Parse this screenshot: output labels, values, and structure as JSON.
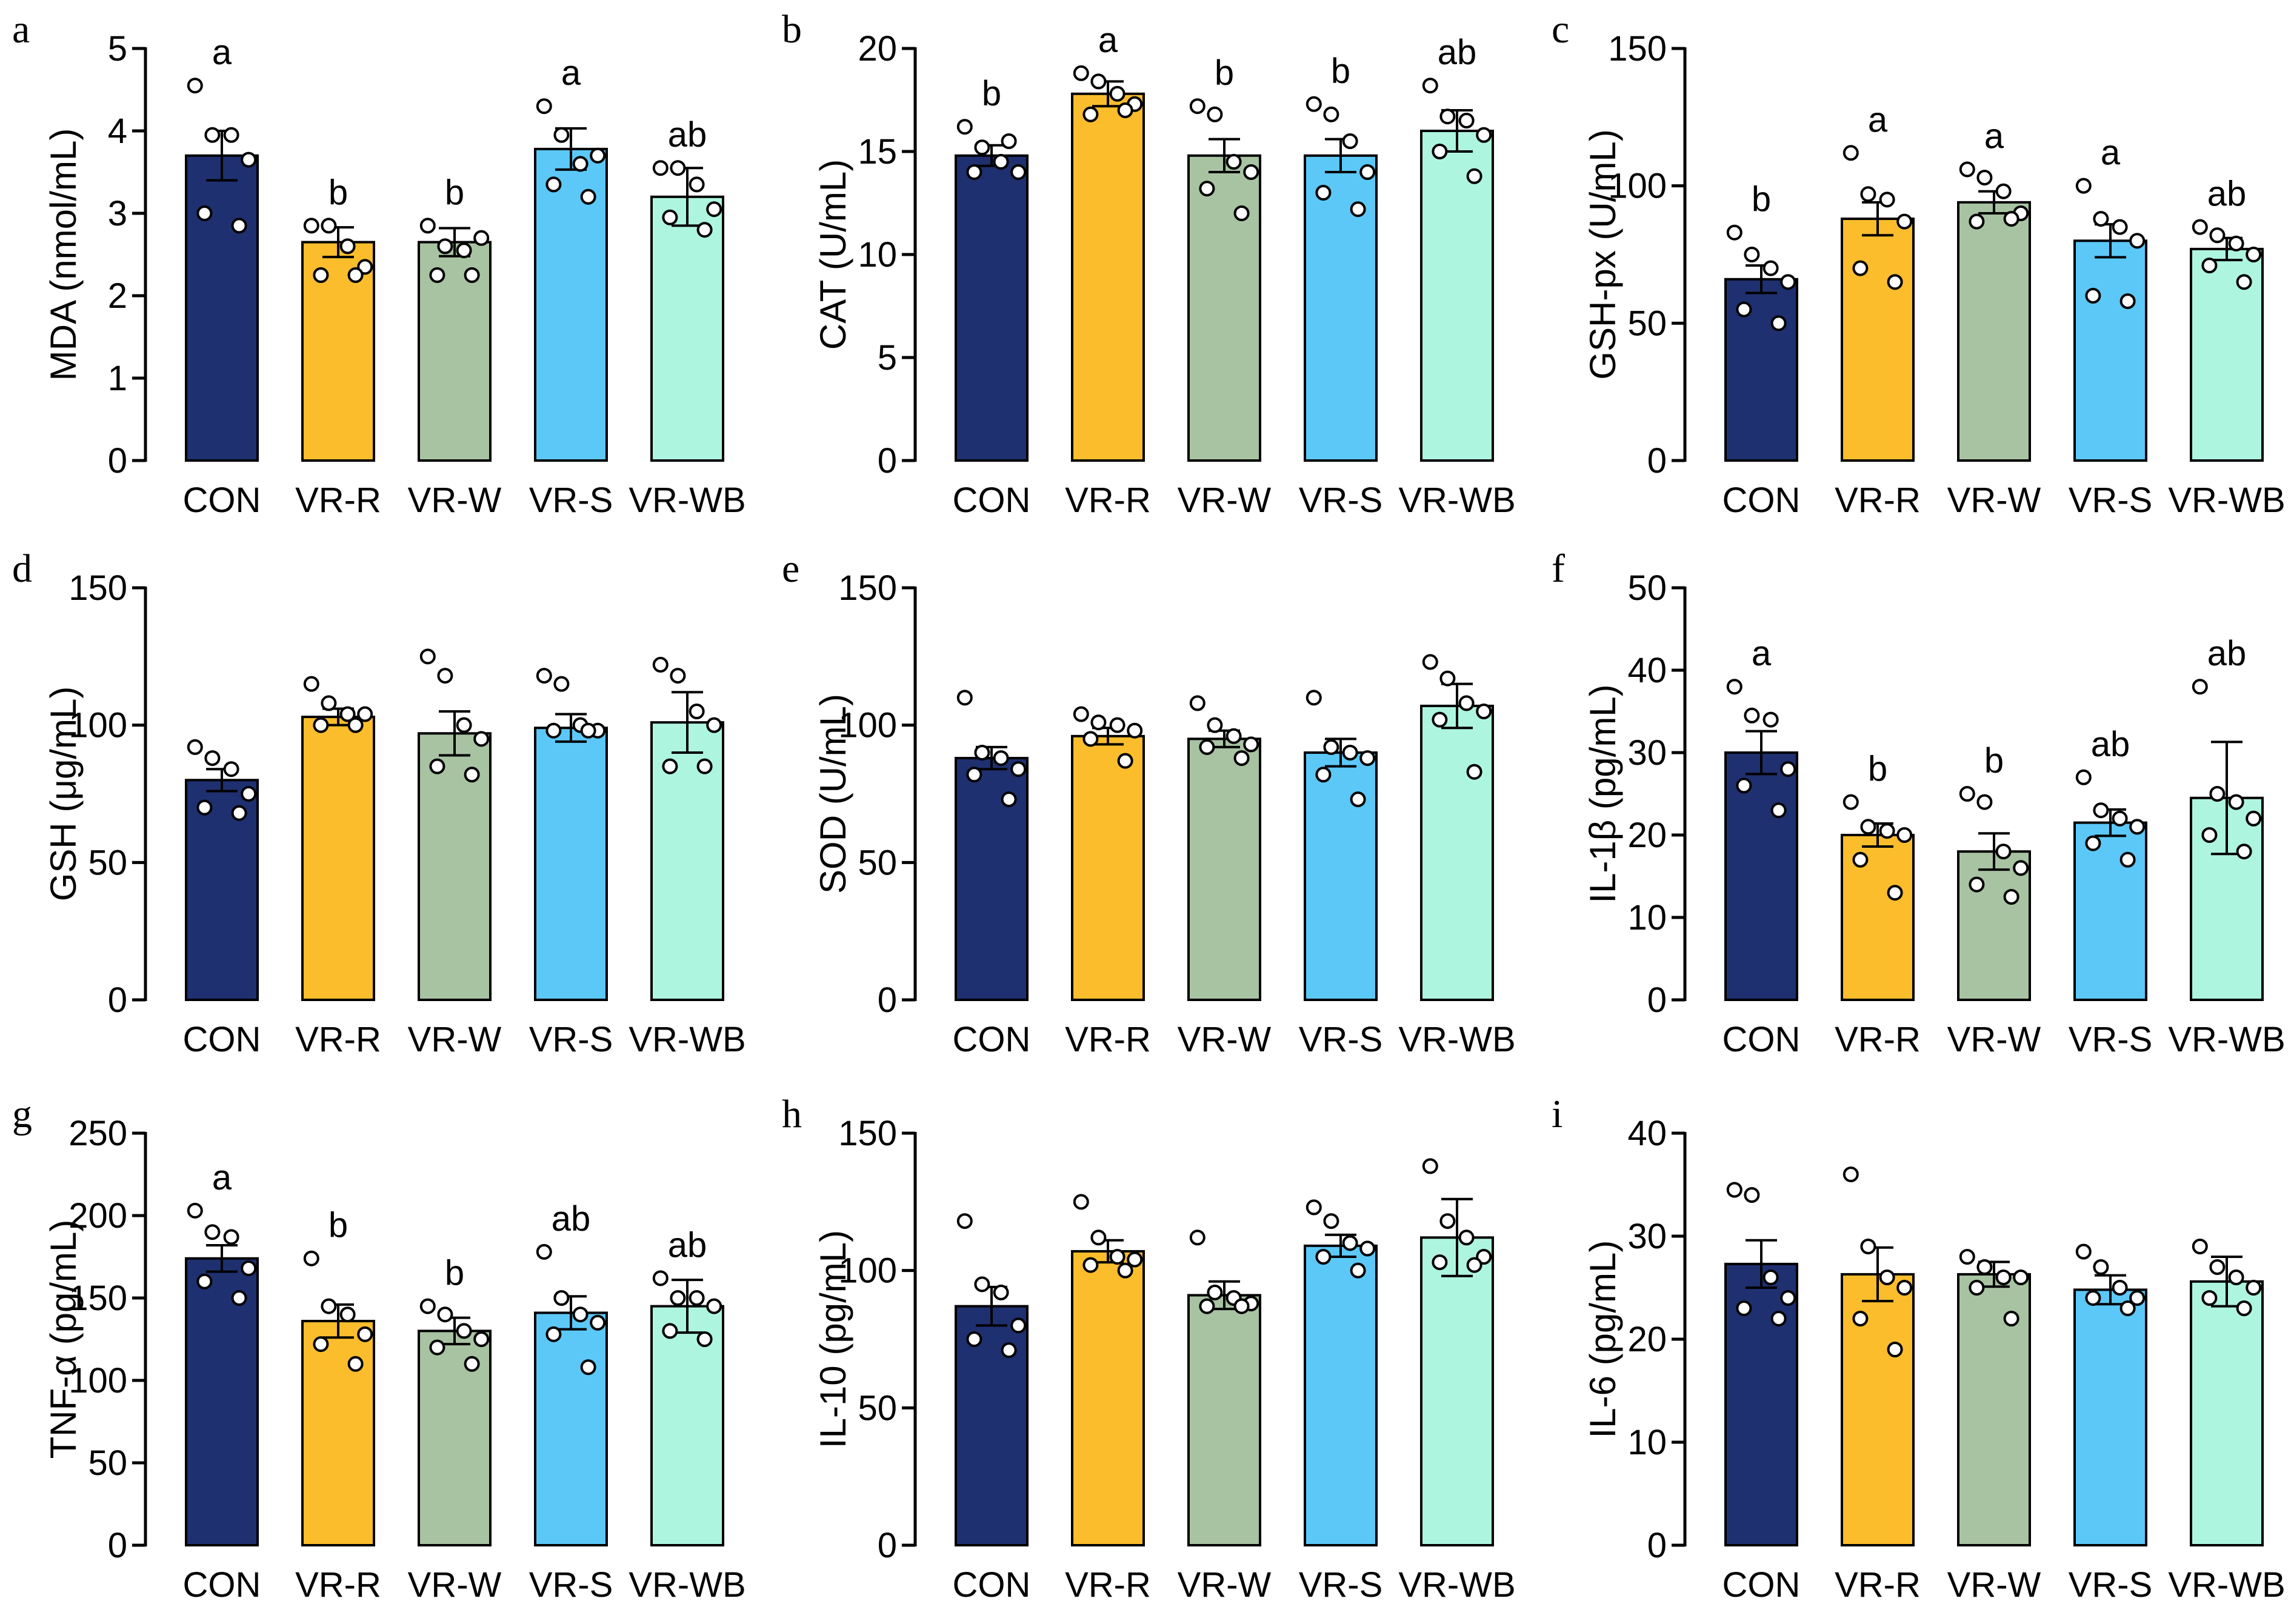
{
  "colors": [
    "#1f3070",
    "#fbbd2c",
    "#a8c3a2",
    "#5cc8f8",
    "#aef5e0"
  ],
  "categories": [
    "CON",
    "VR-R",
    "VR-W",
    "VR-S",
    "VR-WB"
  ],
  "chart_data": [
    {
      "type": "bar",
      "panel": "a",
      "ylabel": "MDA (nmol/mL)",
      "ylim": [
        0,
        5
      ],
      "ticks": [
        0,
        1,
        2,
        3,
        4,
        5
      ],
      "values": [
        3.7,
        2.65,
        2.65,
        3.78,
        3.2
      ],
      "sem": [
        0.3,
        0.18,
        0.17,
        0.25,
        0.35
      ],
      "letters": [
        "a",
        "b",
        "b",
        "a",
        "ab"
      ],
      "points": [
        [
          4.55,
          3.95,
          3.95,
          3.65,
          3.0,
          2.85
        ],
        [
          2.85,
          2.85,
          2.6,
          2.35,
          2.25,
          2.25
        ],
        [
          2.85,
          2.6,
          2.55,
          2.7,
          2.25,
          2.25
        ],
        [
          4.3,
          3.95,
          3.6,
          3.7,
          3.35,
          3.2
        ],
        [
          3.55,
          3.55,
          3.35,
          3.05,
          2.95,
          2.8
        ]
      ]
    },
    {
      "type": "bar",
      "panel": "b",
      "ylabel": "CAT (U/mL)",
      "ylim": [
        0,
        20
      ],
      "ticks": [
        0,
        5,
        10,
        15,
        20
      ],
      "values": [
        14.8,
        17.8,
        14.8,
        14.8,
        16.0
      ],
      "sem": [
        0.5,
        0.6,
        0.8,
        0.8,
        1.0
      ],
      "letters": [
        "b",
        "a",
        "b",
        "b",
        "ab"
      ],
      "points": [
        [
          16.2,
          15.2,
          14.5,
          14.0,
          14.0,
          15.5
        ],
        [
          18.8,
          18.4,
          17.8,
          17.3,
          16.8,
          17.0
        ],
        [
          17.2,
          16.8,
          14.5,
          14.0,
          13.2,
          12.0
        ],
        [
          17.3,
          16.8,
          15.5,
          14.0,
          13.0,
          12.2
        ],
        [
          18.2,
          16.7,
          16.5,
          15.8,
          15.0,
          13.8
        ]
      ]
    },
    {
      "type": "bar",
      "panel": "c",
      "ylabel": "GSH-px (U/mL)",
      "ylim": [
        0,
        150
      ],
      "ticks": [
        0,
        50,
        100,
        150
      ],
      "values": [
        66,
        88,
        94,
        80,
        77
      ],
      "sem": [
        5,
        6,
        4,
        6,
        4
      ],
      "letters": [
        "b",
        "a",
        "a",
        "a",
        "ab"
      ],
      "points": [
        [
          83,
          75,
          70,
          65,
          55,
          50
        ],
        [
          112,
          97,
          95,
          87,
          70,
          65
        ],
        [
          106,
          103,
          98,
          90,
          87,
          88
        ],
        [
          100,
          88,
          85,
          80,
          60,
          58
        ],
        [
          85,
          82,
          79,
          75,
          71,
          65
        ]
      ]
    },
    {
      "type": "bar",
      "panel": "d",
      "ylabel": "GSH (μg/mL)",
      "ylim": [
        0,
        150
      ],
      "ticks": [
        0,
        50,
        100,
        150
      ],
      "values": [
        80,
        103,
        97,
        99,
        101
      ],
      "sem": [
        4,
        3,
        8,
        5,
        11
      ],
      "letters": [
        "",
        "",
        "",
        "",
        ""
      ],
      "points": [
        [
          92,
          88,
          84,
          75,
          70,
          68
        ],
        [
          115,
          108,
          104,
          104,
          100,
          100
        ],
        [
          125,
          118,
          100,
          95,
          85,
          82
        ],
        [
          118,
          115,
          100,
          98,
          98,
          98
        ],
        [
          122,
          118,
          105,
          100,
          85,
          85
        ]
      ]
    },
    {
      "type": "bar",
      "panel": "e",
      "ylabel": "SOD (U/mL)",
      "ylim": [
        0,
        150
      ],
      "ticks": [
        0,
        50,
        100,
        150
      ],
      "values": [
        88,
        96,
        95,
        90,
        107
      ],
      "sem": [
        4,
        3,
        3,
        5,
        8
      ],
      "letters": [
        "",
        "",
        "",
        "",
        ""
      ],
      "points": [
        [
          110,
          90,
          88,
          84,
          82,
          73
        ],
        [
          104,
          101,
          100,
          98,
          95,
          87
        ],
        [
          108,
          100,
          96,
          93,
          92,
          88
        ],
        [
          110,
          92,
          90,
          88,
          82,
          73
        ],
        [
          123,
          117,
          108,
          105,
          102,
          83
        ]
      ]
    },
    {
      "type": "bar",
      "panel": "f",
      "ylabel": "IL-1β (pg/mL)",
      "ylim": [
        0,
        50
      ],
      "ticks": [
        0,
        10,
        20,
        30,
        40,
        50
      ],
      "values": [
        30,
        20,
        18,
        21.5,
        24.5
      ],
      "sem": [
        2.6,
        1.4,
        2.2,
        1.6,
        6.8
      ],
      "letters": [
        "a",
        "b",
        "b",
        "ab",
        "ab"
      ],
      "points": [
        [
          38,
          34.5,
          34,
          28,
          26,
          23
        ],
        [
          24,
          21,
          20.5,
          20,
          17,
          13
        ],
        [
          25,
          24,
          18,
          16,
          14,
          12.5
        ],
        [
          27,
          23,
          22,
          21,
          19,
          17
        ],
        [
          38,
          25,
          24,
          22,
          20,
          18
        ]
      ]
    },
    {
      "type": "bar",
      "panel": "g",
      "ylabel": "TNF-α (pg/mL)",
      "ylim": [
        0,
        250
      ],
      "ticks": [
        0,
        50,
        100,
        150,
        200,
        250
      ],
      "values": [
        174,
        136,
        130,
        141,
        145
      ],
      "sem": [
        8,
        10,
        8,
        10,
        16
      ],
      "letters": [
        "a",
        "b",
        "b",
        "ab",
        "ab"
      ],
      "points": [
        [
          203,
          190,
          187,
          168,
          160,
          150
        ],
        [
          174,
          145,
          140,
          128,
          122,
          110
        ],
        [
          145,
          140,
          130,
          125,
          120,
          110
        ],
        [
          178,
          150,
          140,
          135,
          128,
          108
        ],
        [
          162,
          150,
          150,
          145,
          130,
          125
        ]
      ]
    },
    {
      "type": "bar",
      "panel": "h",
      "ylabel": "IL-10 (pg/mL)",
      "ylim": [
        0,
        150
      ],
      "ticks": [
        0,
        50,
        100,
        150
      ],
      "values": [
        87,
        107,
        91,
        109,
        112
      ],
      "sem": [
        7,
        4,
        5,
        4,
        14
      ],
      "letters": [
        "",
        "",
        "",
        "",
        ""
      ],
      "points": [
        [
          118,
          95,
          92,
          80,
          75,
          71
        ],
        [
          125,
          112,
          105,
          104,
          102,
          100
        ],
        [
          112,
          92,
          90,
          88,
          87,
          87
        ],
        [
          123,
          118,
          110,
          108,
          105,
          100
        ],
        [
          138,
          118,
          112,
          105,
          103,
          102
        ]
      ]
    },
    {
      "type": "bar",
      "panel": "i",
      "ylabel": "IL-6 (pg/mL)",
      "ylim": [
        0,
        40
      ],
      "ticks": [
        0,
        10,
        20,
        30,
        40
      ],
      "values": [
        27.3,
        26.3,
        26.3,
        24.8,
        25.6
      ],
      "sem": [
        2.3,
        2.6,
        1.2,
        1.4,
        2.4
      ],
      "letters": [
        "",
        "",
        "",
        "",
        ""
      ],
      "points": [
        [
          34.5,
          34,
          26,
          24,
          23,
          22
        ],
        [
          36,
          29,
          26,
          25,
          22,
          19
        ],
        [
          28,
          27,
          26,
          26,
          25,
          22
        ],
        [
          28.5,
          27,
          25,
          24,
          24,
          23
        ],
        [
          29,
          27,
          26,
          25,
          24,
          23
        ]
      ]
    }
  ]
}
